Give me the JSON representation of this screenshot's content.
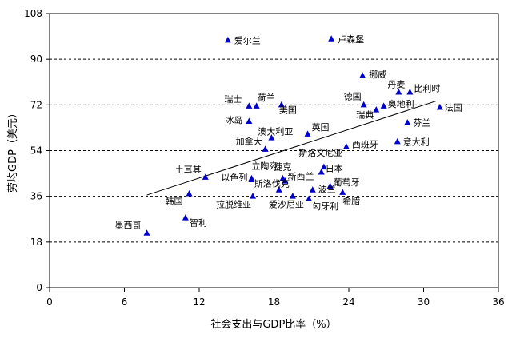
{
  "chart_data": {
    "type": "scatter",
    "xlabel": "社会支出与GDP比率（%）",
    "ylabel": "劳均GDP（美元）",
    "xlim": [
      0,
      36
    ],
    "ylim": [
      0,
      108
    ],
    "xticks": [
      0,
      6,
      12,
      18,
      24,
      30,
      36
    ],
    "yticks": [
      0,
      18,
      36,
      54,
      72,
      90,
      108
    ],
    "grid": "horizontal-dashed",
    "marker_color": "#0000CC",
    "trendline": {
      "x": [
        7.8,
        31.0
      ],
      "y": [
        36.5,
        73.5
      ]
    },
    "points": [
      {
        "label": "爱尔兰",
        "x": 14.3,
        "y": 97.5
      },
      {
        "label": "卢森堡",
        "x": 22.6,
        "y": 98.0
      },
      {
        "label": "挪威",
        "x": 25.1,
        "y": 83.5
      },
      {
        "label": "丹麦",
        "x": 28.0,
        "y": 77.0
      },
      {
        "label": "比利时",
        "x": 28.9,
        "y": 77.0
      },
      {
        "label": "瑞士",
        "x": 16.0,
        "y": 71.5
      },
      {
        "label": "荷兰",
        "x": 16.6,
        "y": 71.5
      },
      {
        "label": "美国",
        "x": 18.6,
        "y": 72.0
      },
      {
        "label": "德国",
        "x": 25.2,
        "y": 72.0
      },
      {
        "label": "奥地利",
        "x": 26.8,
        "y": 71.5
      },
      {
        "label": "瑞典",
        "x": 26.2,
        "y": 70.0
      },
      {
        "label": "法国",
        "x": 31.3,
        "y": 71.0
      },
      {
        "label": "冰岛",
        "x": 16.0,
        "y": 65.5
      },
      {
        "label": "芬兰",
        "x": 28.7,
        "y": 65.0
      },
      {
        "label": "澳大利亚",
        "x": 17.8,
        "y": 59.0
      },
      {
        "label": "英国",
        "x": 20.7,
        "y": 60.5
      },
      {
        "label": "加拿大",
        "x": 17.3,
        "y": 54.5
      },
      {
        "label": "西班牙",
        "x": 23.8,
        "y": 55.5
      },
      {
        "label": "意大利",
        "x": 27.9,
        "y": 57.5
      },
      {
        "label": "土耳其",
        "x": 12.5,
        "y": 43.5
      },
      {
        "label": "立陶宛",
        "x": 16.2,
        "y": 43.0
      },
      {
        "label": "以色列",
        "x": 16.2,
        "y": 42.5
      },
      {
        "label": "斯洛文尼亚",
        "x": 22.0,
        "y": 47.5
      },
      {
        "label": "日本",
        "x": 21.8,
        "y": 45.5
      },
      {
        "label": "捷克",
        "x": 18.7,
        "y": 43.0
      },
      {
        "label": "新西兰",
        "x": 18.9,
        "y": 42.0
      },
      {
        "label": "斯洛伐克",
        "x": 18.4,
        "y": 38.5
      },
      {
        "label": "葡萄牙",
        "x": 22.5,
        "y": 40.0
      },
      {
        "label": "波兰",
        "x": 21.1,
        "y": 38.5
      },
      {
        "label": "韩国",
        "x": 11.2,
        "y": 37.0
      },
      {
        "label": "拉脱维亚",
        "x": 16.3,
        "y": 36.0
      },
      {
        "label": "爱沙尼亚",
        "x": 19.5,
        "y": 36.0
      },
      {
        "label": "希腊",
        "x": 23.5,
        "y": 37.5
      },
      {
        "label": "匈牙利",
        "x": 20.8,
        "y": 35.0
      },
      {
        "label": "墨西哥",
        "x": 7.8,
        "y": 21.5
      },
      {
        "label": "智利",
        "x": 10.9,
        "y": 27.5
      }
    ]
  }
}
